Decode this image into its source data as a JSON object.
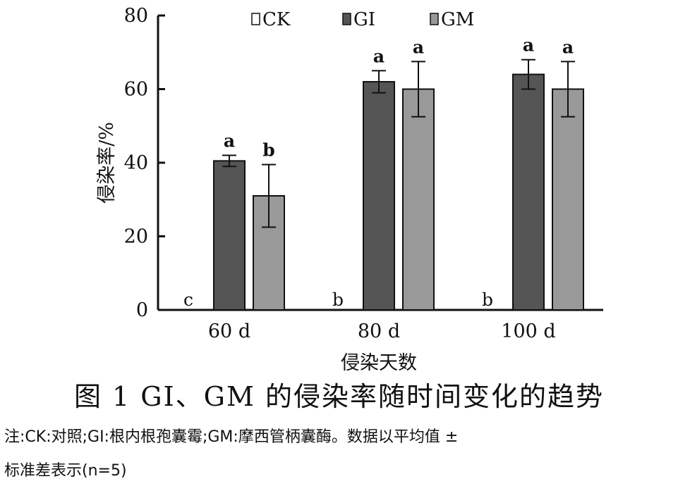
{
  "chart_data": {
    "type": "bar",
    "categories": [
      "60 d",
      "80 d",
      "100 d"
    ],
    "series": [
      {
        "name": "CK",
        "color": "#ffffff",
        "values": [
          0,
          0,
          0
        ],
        "errors": [
          0,
          0,
          0
        ],
        "letters": [
          "c",
          "b",
          "b"
        ]
      },
      {
        "name": "GI",
        "color": "#555555",
        "values": [
          40.5,
          62,
          64
        ],
        "errors": [
          1.5,
          3,
          4
        ],
        "letters": [
          "a",
          "a",
          "a"
        ]
      },
      {
        "name": "GM",
        "color": "#999999",
        "values": [
          31,
          60,
          60
        ],
        "errors": [
          8.5,
          7.5,
          7.5
        ],
        "letters": [
          "b",
          "a",
          "a"
        ]
      }
    ],
    "ylabel": "侵染率/%",
    "xlabel": "侵染天数",
    "ylim": [
      0,
      80
    ],
    "yticks": [
      "0",
      "20",
      "40",
      "60",
      "80"
    ],
    "grid": false,
    "legend_position": "top"
  },
  "caption": "图 1   GI、GM 的侵染率随时间变化的趋势",
  "note_line1": "注:CK:对照;GI:根内根孢囊霉;GM:摩西管柄囊酶。数据以平均值 ±",
  "note_line2": "标准差表示(n=5)"
}
